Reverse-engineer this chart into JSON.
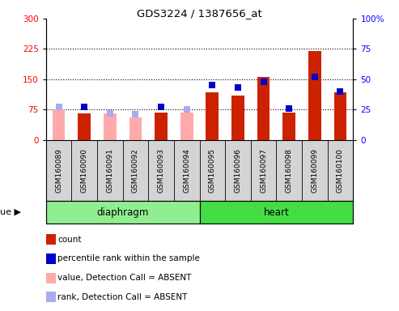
{
  "title": "GDS3224 / 1387656_at",
  "samples": [
    "GSM160089",
    "GSM160090",
    "GSM160091",
    "GSM160092",
    "GSM160093",
    "GSM160094",
    "GSM160095",
    "GSM160096",
    "GSM160097",
    "GSM160098",
    "GSM160099",
    "GSM160100"
  ],
  "tissue_groups": [
    {
      "label": "diaphragm",
      "indices": [
        0,
        1,
        2,
        3,
        4,
        5
      ],
      "color": "#90ee90"
    },
    {
      "label": "heart",
      "indices": [
        6,
        7,
        8,
        9,
        10,
        11
      ],
      "color": "#44dd44"
    }
  ],
  "absent_flags": [
    true,
    false,
    true,
    true,
    false,
    true,
    false,
    false,
    false,
    false,
    false,
    false
  ],
  "count_values": [
    75,
    65,
    65,
    55,
    68,
    68,
    118,
    110,
    155,
    68,
    220,
    118
  ],
  "rank_values": [
    27,
    27,
    22,
    21,
    27,
    25,
    45,
    43,
    48,
    26,
    52,
    40
  ],
  "bar_color_present": "#cc2200",
  "bar_color_absent": "#ffaaaa",
  "rank_color_present": "#0000cc",
  "rank_color_absent": "#aaaaee",
  "ylim_left": [
    0,
    300
  ],
  "ylim_right": [
    0,
    100
  ],
  "yticks_left": [
    0,
    75,
    150,
    225,
    300
  ],
  "yticks_right": [
    0,
    25,
    50,
    75,
    100
  ],
  "hlines": [
    75,
    150,
    225
  ],
  "xlabel_area_color": "#d4d4d4",
  "plot_bg": "#ffffff",
  "legend_items": [
    {
      "color": "#cc2200",
      "label": "count"
    },
    {
      "color": "#0000cc",
      "label": "percentile rank within the sample"
    },
    {
      "color": "#ffaaaa",
      "label": "value, Detection Call = ABSENT"
    },
    {
      "color": "#aaaaee",
      "label": "rank, Detection Call = ABSENT"
    }
  ]
}
